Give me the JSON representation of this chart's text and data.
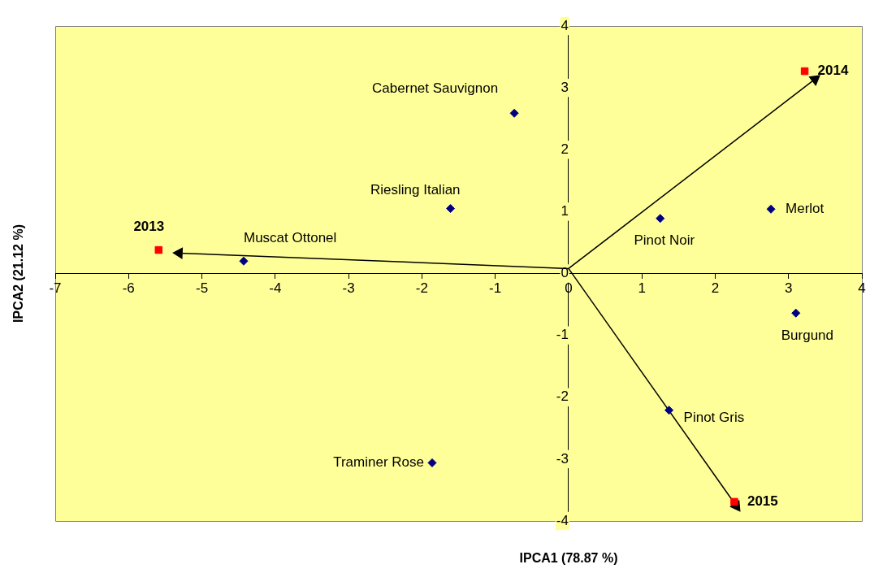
{
  "chart_data": {
    "type": "scatter",
    "xlabel": "IPCA1 (78.87 %)",
    "ylabel": "IPCA2 (21.12 %)",
    "xlim": [
      -7,
      4
    ],
    "xticks": [
      -7,
      -6,
      -5,
      -4,
      -3,
      -2,
      -1,
      0,
      1,
      2,
      3,
      4
    ],
    "ylim": [
      -4,
      4
    ],
    "yticks": [
      -4,
      -3,
      -2,
      -1,
      0,
      1,
      2,
      3,
      4
    ],
    "grid": false,
    "legend": false,
    "series": [
      {
        "name": "Cabernet Sauvignon",
        "type": "scatter",
        "marker": "diamond",
        "color": "#000080",
        "x": [
          -0.74
        ],
        "values": [
          2.59
        ]
      },
      {
        "name": "Riesling Italian",
        "type": "scatter",
        "marker": "diamond",
        "color": "#000080",
        "x": [
          -1.61
        ],
        "values": [
          1.05
        ]
      },
      {
        "name": "Muscat Ottonel",
        "type": "scatter",
        "marker": "diamond",
        "color": "#000080",
        "x": [
          -4.43
        ],
        "values": [
          0.2
        ]
      },
      {
        "name": "Traminer Rose",
        "type": "scatter",
        "marker": "diamond",
        "color": "#000080",
        "x": [
          -1.86
        ],
        "values": [
          -3.06
        ]
      },
      {
        "name": "Pinot Noir",
        "type": "scatter",
        "marker": "diamond",
        "color": "#000080",
        "x": [
          1.25
        ],
        "values": [
          0.89
        ]
      },
      {
        "name": "Merlot",
        "type": "scatter",
        "marker": "diamond",
        "color": "#000080",
        "x": [
          2.76
        ],
        "values": [
          1.04
        ]
      },
      {
        "name": "Burgund",
        "type": "scatter",
        "marker": "diamond",
        "color": "#000080",
        "x": [
          3.1
        ],
        "values": [
          -0.64
        ]
      },
      {
        "name": "Pinot Gris",
        "type": "scatter",
        "marker": "diamond",
        "color": "#000080",
        "x": [
          1.37
        ],
        "values": [
          -2.21
        ]
      },
      {
        "name": "2013",
        "type": "scatter",
        "marker": "square",
        "color": "#ff0000",
        "x": [
          -5.59
        ],
        "values": [
          0.38
        ]
      },
      {
        "name": "2014",
        "type": "scatter",
        "marker": "square",
        "color": "#ff0000",
        "x": [
          3.22
        ],
        "values": [
          3.27
        ]
      },
      {
        "name": "2015",
        "type": "scatter",
        "marker": "square",
        "color": "#ff0000",
        "x": [
          2.26
        ],
        "values": [
          -3.69
        ]
      },
      {
        "type": "line",
        "marker": "triangle",
        "line_style": "solid",
        "color": "#000000",
        "x": [
          0,
          -5.31
        ],
        "values": [
          0.08,
          0.33
        ]
      },
      {
        "type": "line",
        "marker": "triangle",
        "line_style": "solid",
        "color": "#000000",
        "x": [
          0,
          3.36
        ],
        "values": [
          0.08,
          3.14
        ]
      },
      {
        "type": "line",
        "marker": "triangle",
        "line_style": "solid",
        "color": "#000000",
        "x": [
          0,
          2.29
        ],
        "values": [
          0.08,
          -3.76
        ]
      }
    ]
  }
}
